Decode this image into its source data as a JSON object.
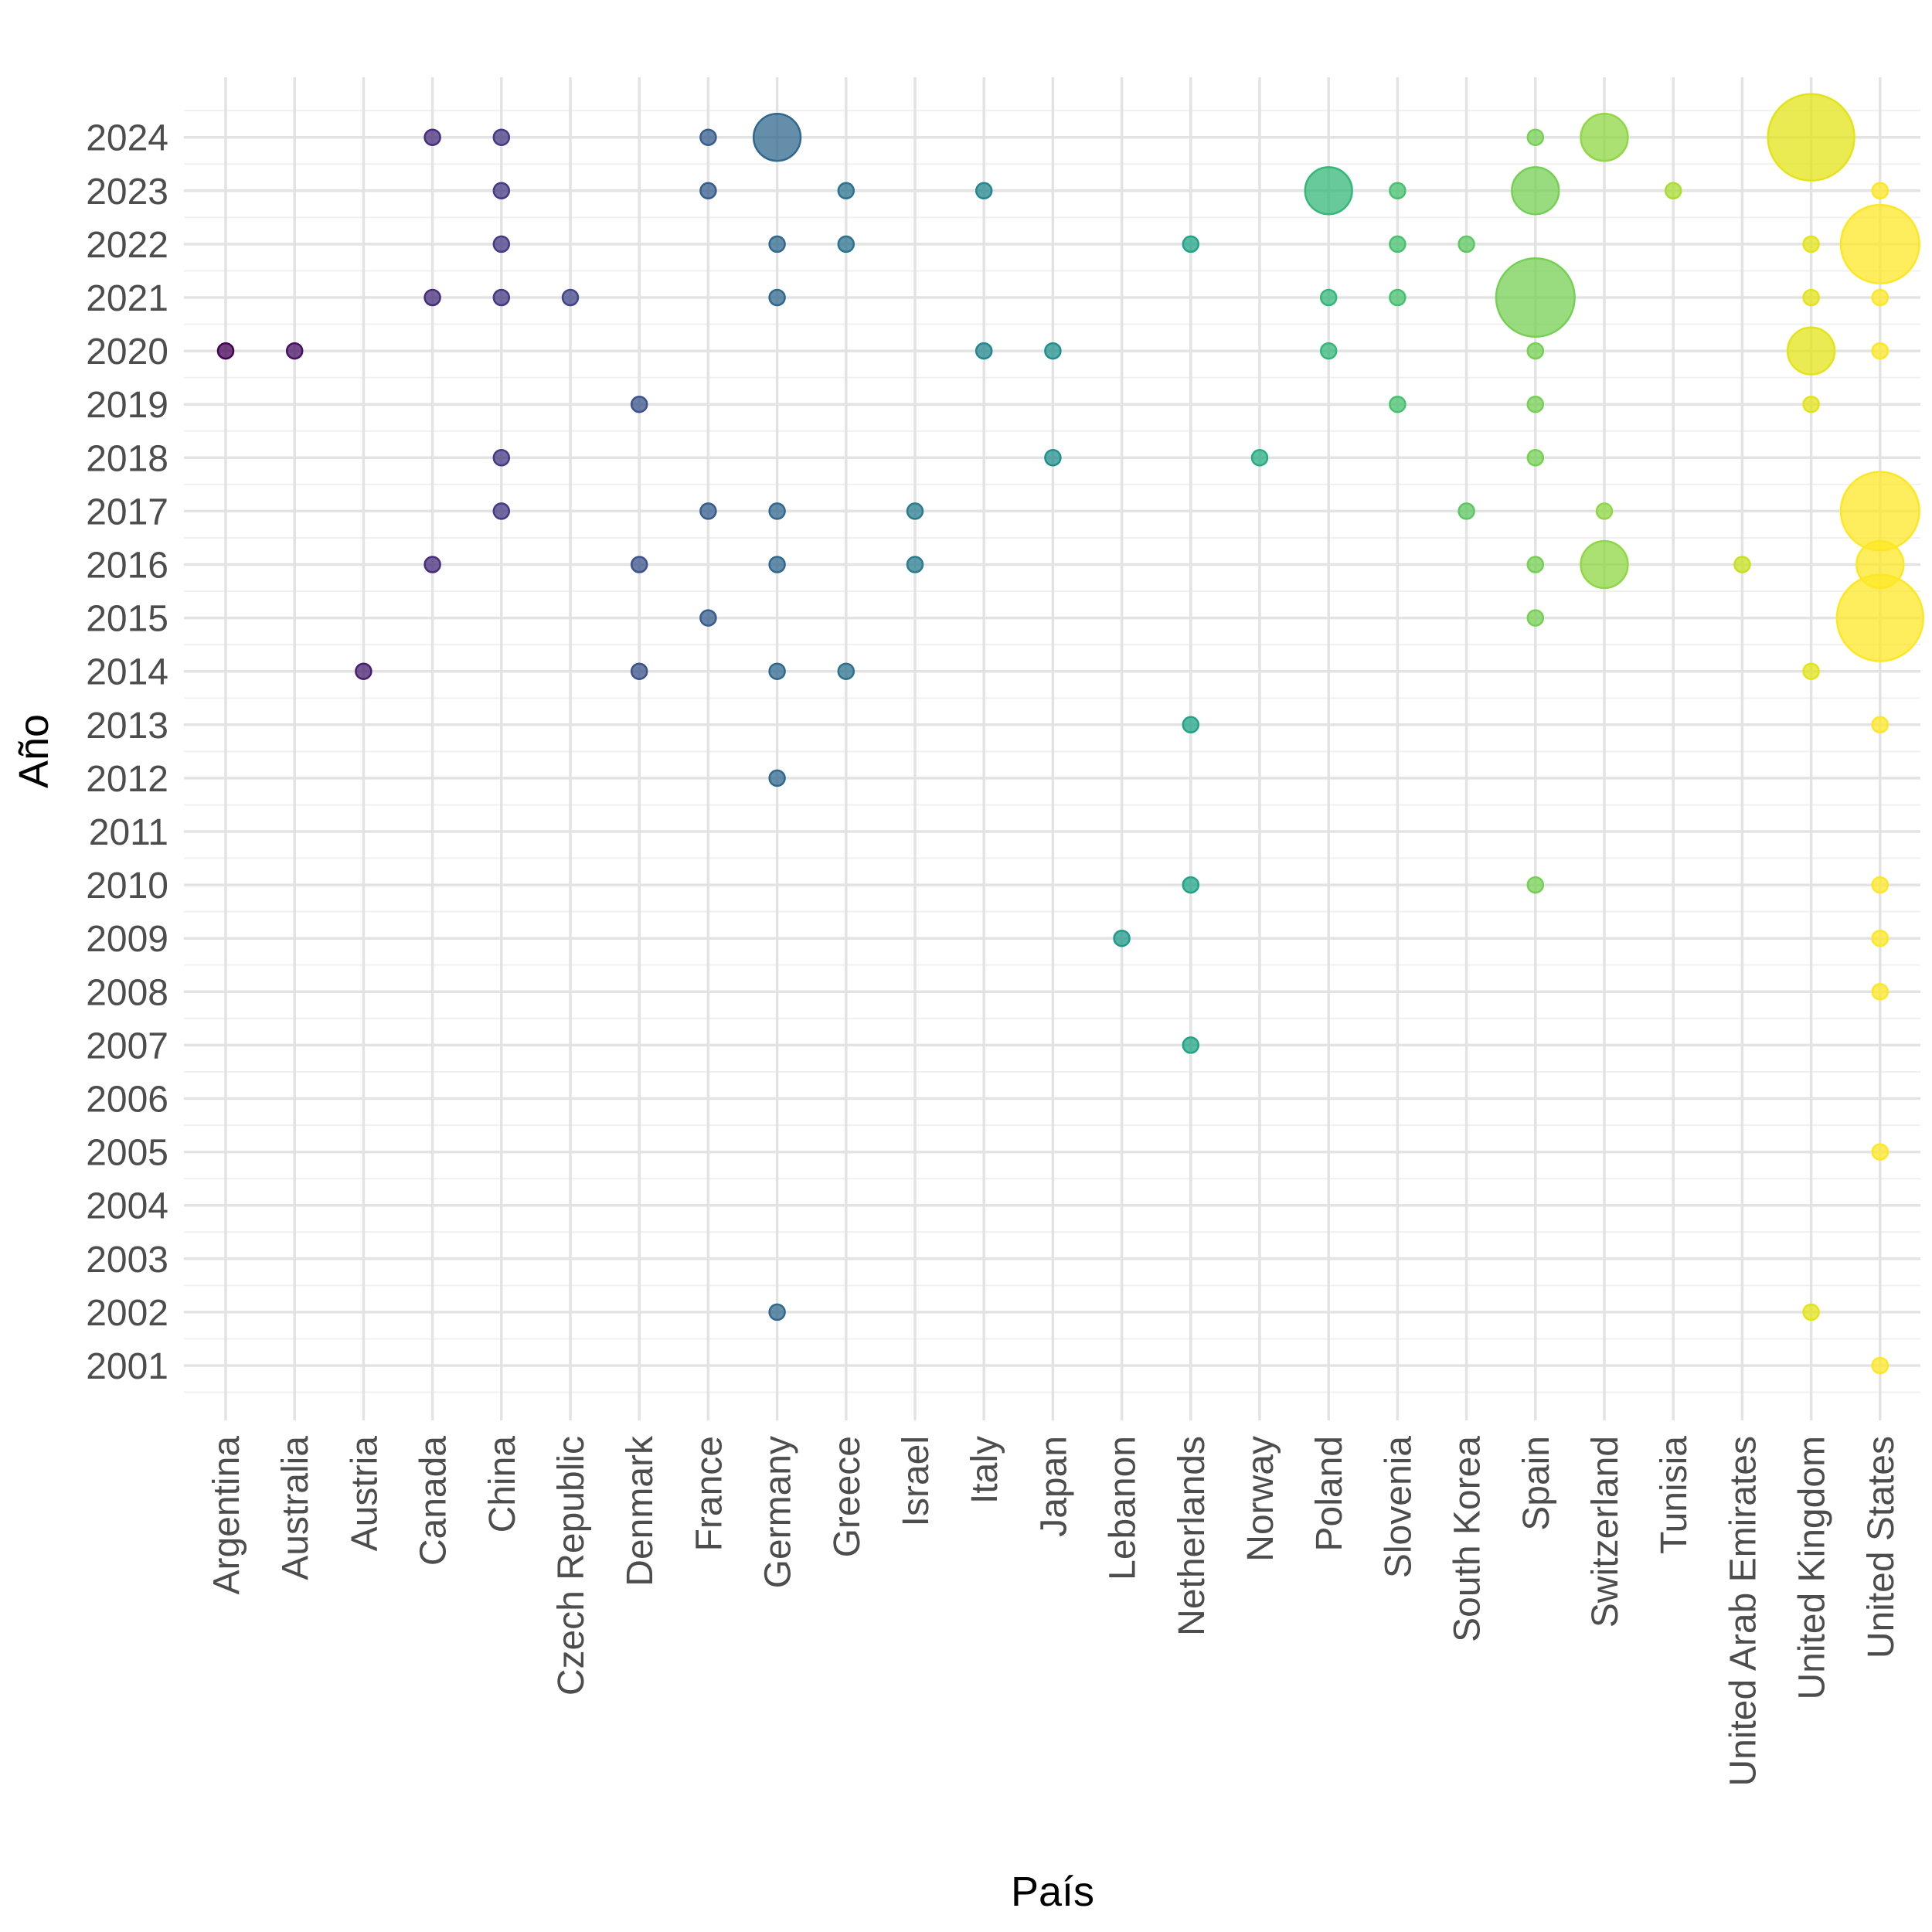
{
  "chart_data": {
    "type": "scatter",
    "xlabel": "País",
    "ylabel": "Año",
    "categories": [
      "Argentina",
      "Australia",
      "Austria",
      "Canada",
      "China",
      "Czech Republic",
      "Denmark",
      "France",
      "Germany",
      "Greece",
      "Israel",
      "Italy",
      "Japan",
      "Lebanon",
      "Netherlands",
      "Norway",
      "Poland",
      "Slovenia",
      "South Korea",
      "Spain",
      "Switzerland",
      "Tunisia",
      "United Arab Emirates",
      "United Kingdom",
      "United States"
    ],
    "y_ticks": [
      2001,
      2002,
      2003,
      2004,
      2005,
      2006,
      2007,
      2008,
      2009,
      2010,
      2011,
      2012,
      2013,
      2014,
      2015,
      2016,
      2017,
      2018,
      2019,
      2020,
      2021,
      2022,
      2023,
      2024
    ],
    "ylim": [
      2000,
      2025
    ],
    "grid": true,
    "legend": "none",
    "colors": [
      "#440154",
      "#471164",
      "#481F70",
      "#472D7B",
      "#443A83",
      "#404688",
      "#3B528B",
      "#365D8D",
      "#31688E",
      "#2C728E",
      "#287C8E",
      "#24868E",
      "#21908C",
      "#1F9A8A",
      "#20A486",
      "#27AD81",
      "#35B779",
      "#47C16E",
      "#5DC863",
      "#75D054",
      "#8FD744",
      "#AADC32",
      "#C7E020",
      "#E3E418",
      "#FDE725"
    ],
    "points": [
      {
        "x": "Argentina",
        "y": 2020,
        "size": 1
      },
      {
        "x": "Australia",
        "y": 2020,
        "size": 1
      },
      {
        "x": "Austria",
        "y": 2014,
        "size": 1
      },
      {
        "x": "Canada",
        "y": 2024,
        "size": 1
      },
      {
        "x": "Canada",
        "y": 2021,
        "size": 1
      },
      {
        "x": "Canada",
        "y": 2016,
        "size": 1
      },
      {
        "x": "China",
        "y": 2024,
        "size": 1
      },
      {
        "x": "China",
        "y": 2023,
        "size": 1
      },
      {
        "x": "China",
        "y": 2022,
        "size": 1
      },
      {
        "x": "China",
        "y": 2021,
        "size": 1
      },
      {
        "x": "China",
        "y": 2018,
        "size": 1
      },
      {
        "x": "China",
        "y": 2017,
        "size": 1
      },
      {
        "x": "Czech Republic",
        "y": 2021,
        "size": 1
      },
      {
        "x": "Denmark",
        "y": 2019,
        "size": 1
      },
      {
        "x": "Denmark",
        "y": 2016,
        "size": 1
      },
      {
        "x": "Denmark",
        "y": 2014,
        "size": 1
      },
      {
        "x": "France",
        "y": 2024,
        "size": 1
      },
      {
        "x": "France",
        "y": 2023,
        "size": 1
      },
      {
        "x": "France",
        "y": 2017,
        "size": 1
      },
      {
        "x": "France",
        "y": 2015,
        "size": 1
      },
      {
        "x": "Germany",
        "y": 2024,
        "size": 5
      },
      {
        "x": "Germany",
        "y": 2022,
        "size": 1
      },
      {
        "x": "Germany",
        "y": 2021,
        "size": 1
      },
      {
        "x": "Germany",
        "y": 2017,
        "size": 1
      },
      {
        "x": "Germany",
        "y": 2016,
        "size": 1
      },
      {
        "x": "Germany",
        "y": 2014,
        "size": 1
      },
      {
        "x": "Germany",
        "y": 2012,
        "size": 1
      },
      {
        "x": "Germany",
        "y": 2002,
        "size": 1
      },
      {
        "x": "Greece",
        "y": 2023,
        "size": 1
      },
      {
        "x": "Greece",
        "y": 2022,
        "size": 1
      },
      {
        "x": "Greece",
        "y": 2014,
        "size": 1
      },
      {
        "x": "Israel",
        "y": 2017,
        "size": 1
      },
      {
        "x": "Israel",
        "y": 2016,
        "size": 1
      },
      {
        "x": "Italy",
        "y": 2023,
        "size": 1
      },
      {
        "x": "Italy",
        "y": 2020,
        "size": 1
      },
      {
        "x": "Japan",
        "y": 2020,
        "size": 1
      },
      {
        "x": "Japan",
        "y": 2018,
        "size": 1
      },
      {
        "x": "Lebanon",
        "y": 2009,
        "size": 1
      },
      {
        "x": "Netherlands",
        "y": 2022,
        "size": 1
      },
      {
        "x": "Netherlands",
        "y": 2013,
        "size": 1
      },
      {
        "x": "Netherlands",
        "y": 2010,
        "size": 1
      },
      {
        "x": "Netherlands",
        "y": 2007,
        "size": 1
      },
      {
        "x": "Norway",
        "y": 2018,
        "size": 1
      },
      {
        "x": "Poland",
        "y": 2023,
        "size": 5
      },
      {
        "x": "Poland",
        "y": 2021,
        "size": 1
      },
      {
        "x": "Poland",
        "y": 2020,
        "size": 1
      },
      {
        "x": "Slovenia",
        "y": 2023,
        "size": 1
      },
      {
        "x": "Slovenia",
        "y": 2022,
        "size": 1
      },
      {
        "x": "Slovenia",
        "y": 2021,
        "size": 1
      },
      {
        "x": "Slovenia",
        "y": 2019,
        "size": 1
      },
      {
        "x": "South Korea",
        "y": 2022,
        "size": 1
      },
      {
        "x": "South Korea",
        "y": 2017,
        "size": 1
      },
      {
        "x": "Spain",
        "y": 2024,
        "size": 1
      },
      {
        "x": "Spain",
        "y": 2023,
        "size": 5
      },
      {
        "x": "Spain",
        "y": 2021,
        "size": 9
      },
      {
        "x": "Spain",
        "y": 2020,
        "size": 1
      },
      {
        "x": "Spain",
        "y": 2019,
        "size": 1
      },
      {
        "x": "Spain",
        "y": 2018,
        "size": 1
      },
      {
        "x": "Spain",
        "y": 2016,
        "size": 1
      },
      {
        "x": "Spain",
        "y": 2015,
        "size": 1
      },
      {
        "x": "Spain",
        "y": 2010,
        "size": 1
      },
      {
        "x": "Switzerland",
        "y": 2024,
        "size": 5
      },
      {
        "x": "Switzerland",
        "y": 2017,
        "size": 1
      },
      {
        "x": "Switzerland",
        "y": 2016,
        "size": 5
      },
      {
        "x": "Tunisia",
        "y": 2023,
        "size": 1
      },
      {
        "x": "United Arab Emirates",
        "y": 2016,
        "size": 1
      },
      {
        "x": "United Kingdom",
        "y": 2024,
        "size": 10
      },
      {
        "x": "United Kingdom",
        "y": 2022,
        "size": 1
      },
      {
        "x": "United Kingdom",
        "y": 2021,
        "size": 1
      },
      {
        "x": "United Kingdom",
        "y": 2020,
        "size": 5
      },
      {
        "x": "United Kingdom",
        "y": 2019,
        "size": 1
      },
      {
        "x": "United Kingdom",
        "y": 2014,
        "size": 1
      },
      {
        "x": "United Kingdom",
        "y": 2002,
        "size": 1
      },
      {
        "x": "United States",
        "y": 2023,
        "size": 1
      },
      {
        "x": "United States",
        "y": 2022,
        "size": 9
      },
      {
        "x": "United States",
        "y": 2021,
        "size": 1
      },
      {
        "x": "United States",
        "y": 2020,
        "size": 1
      },
      {
        "x": "United States",
        "y": 2017,
        "size": 9
      },
      {
        "x": "United States",
        "y": 2016,
        "size": 5
      },
      {
        "x": "United States",
        "y": 2015,
        "size": 10
      },
      {
        "x": "United States",
        "y": 2013,
        "size": 1
      },
      {
        "x": "United States",
        "y": 2010,
        "size": 1
      },
      {
        "x": "United States",
        "y": 2009,
        "size": 1
      },
      {
        "x": "United States",
        "y": 2008,
        "size": 1
      },
      {
        "x": "United States",
        "y": 2005,
        "size": 1
      },
      {
        "x": "United States",
        "y": 2001,
        "size": 1
      }
    ]
  }
}
